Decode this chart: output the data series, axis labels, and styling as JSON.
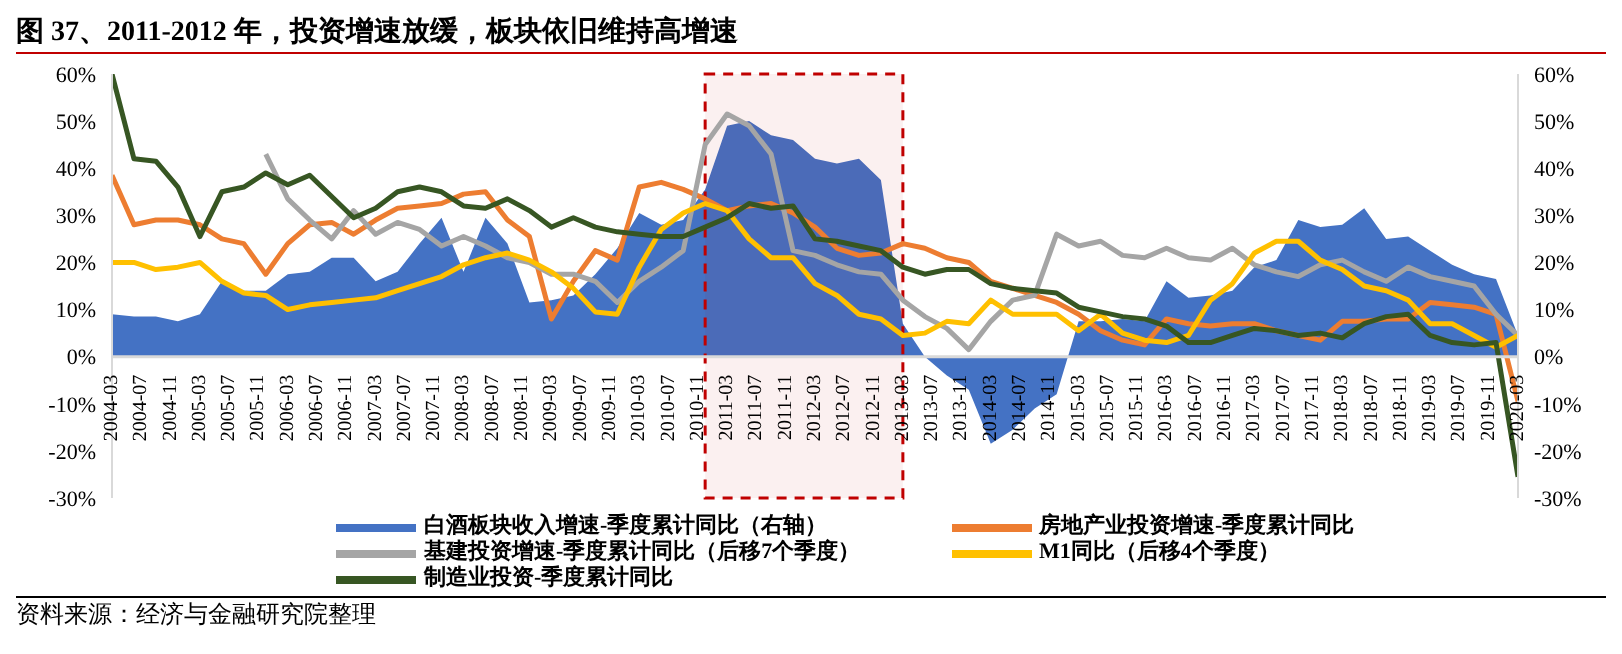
{
  "chart_data": {
    "type": "line",
    "title": "图 37、2011-2012 年，投资增速放缓，板块依旧维持高增速",
    "x": [
      "2004-03",
      "2004-06",
      "2004-09",
      "2004-12",
      "2005-03",
      "2005-06",
      "2005-09",
      "2005-12",
      "2006-03",
      "2006-06",
      "2006-09",
      "2006-12",
      "2007-03",
      "2007-06",
      "2007-09",
      "2007-12",
      "2008-03",
      "2008-06",
      "2008-09",
      "2008-12",
      "2009-03",
      "2009-06",
      "2009-09",
      "2009-12",
      "2010-03",
      "2010-06",
      "2010-09",
      "2010-12",
      "2011-03",
      "2011-06",
      "2011-09",
      "2011-12",
      "2012-03",
      "2012-06",
      "2012-09",
      "2012-12",
      "2013-03",
      "2013-06",
      "2013-09",
      "2013-12",
      "2014-03",
      "2014-06",
      "2014-09",
      "2014-12",
      "2015-03",
      "2015-06",
      "2015-09",
      "2015-12",
      "2016-03",
      "2016-06",
      "2016-09",
      "2016-12",
      "2017-03",
      "2017-06",
      "2017-09",
      "2017-12",
      "2018-03",
      "2018-06",
      "2018-09",
      "2018-12",
      "2019-03",
      "2019-06",
      "2019-09",
      "2019-12",
      "2020-03"
    ],
    "series": [
      {
        "name": "白酒板块收入增速-季度累计同比（右轴）",
        "type": "area",
        "axis": "y2",
        "color": "#4472c4",
        "values": [
          9,
          8.5,
          8.5,
          7.5,
          9,
          16,
          14,
          14,
          17.5,
          18,
          21,
          21,
          16,
          18,
          24,
          29.5,
          18,
          29.5,
          24,
          11.5,
          12,
          13,
          17.5,
          23,
          30.5,
          28,
          29,
          35.5,
          49,
          50,
          47,
          46,
          42,
          41,
          42,
          37.5,
          7,
          0,
          -4,
          -7,
          -18.5,
          -15.5,
          -11,
          -8,
          7.5,
          7.5,
          8,
          7.5,
          16,
          12.5,
          13,
          14,
          19,
          20.5,
          29,
          27.5,
          28,
          31.5,
          25,
          25.5,
          22.5,
          19.5,
          17.5,
          16.5,
          4.5
        ]
      },
      {
        "name": "房地产业投资增速-季度累计同比",
        "color": "#ed7d31",
        "values": [
          38.5,
          28,
          29,
          29,
          28,
          25,
          24,
          17.5,
          24,
          28,
          28.5,
          26,
          29,
          31.5,
          32,
          32.5,
          34.5,
          35,
          29,
          25.5,
          8,
          16,
          22.5,
          20.5,
          36,
          37,
          35.5,
          33.5,
          31,
          32,
          32.5,
          30.5,
          27.5,
          23,
          21.5,
          22,
          24,
          23,
          21,
          20,
          16,
          14.5,
          13,
          11.5,
          9,
          5.5,
          3.5,
          2.5,
          8,
          7,
          6.5,
          7,
          7,
          5.5,
          4.5,
          3.5,
          7.5,
          7.5,
          8,
          8,
          11.5,
          11,
          10.5,
          9,
          -9.5
        ]
      },
      {
        "name": "基建投资增速-季度累计同比（后移7个季度）",
        "color": "#a5a5a5",
        "values": [
          null,
          null,
          null,
          null,
          null,
          null,
          null,
          43,
          33.5,
          29,
          25,
          31,
          26,
          28.5,
          27,
          23.5,
          25.5,
          23.5,
          21,
          20,
          17.5,
          17.5,
          16,
          11.5,
          16,
          19,
          22.5,
          45,
          51.5,
          49,
          43,
          22.5,
          21.5,
          19.5,
          18,
          17.5,
          12,
          8.5,
          6,
          1.5,
          7.5,
          12,
          13,
          26,
          23.5,
          24.5,
          21.5,
          21,
          23,
          21,
          20.5,
          23,
          19.5,
          18,
          17,
          19.5,
          20.5,
          18,
          16,
          19,
          17,
          16,
          15,
          9,
          4.5
        ]
      },
      {
        "name": "M1同比（后移4个季度）",
        "color": "#ffc000",
        "values": [
          20,
          20,
          18.5,
          19,
          20,
          16,
          13.5,
          13,
          10,
          11,
          11.5,
          12,
          12.5,
          14,
          15.5,
          17,
          19.5,
          21,
          22,
          20.5,
          18,
          14.5,
          9.5,
          9,
          19,
          27,
          30.5,
          32.5,
          31,
          25,
          21,
          21,
          15.5,
          13,
          9,
          8,
          4.5,
          5,
          7.5,
          7,
          12,
          9,
          9,
          9,
          5.5,
          9,
          5,
          3.5,
          3,
          4.5,
          12,
          15.5,
          22,
          24.5,
          24.5,
          20.5,
          18.5,
          15,
          14,
          12,
          7,
          7,
          4.5,
          2,
          4.5
        ]
      },
      {
        "name": "制造业投资-季度累计同比",
        "color": "#375623",
        "values": [
          60,
          42,
          41.5,
          36,
          25.5,
          35,
          36,
          39,
          36.5,
          38.5,
          34,
          29.5,
          31.5,
          35,
          36,
          35,
          32,
          31.5,
          33.5,
          31,
          27.5,
          29.5,
          27.5,
          26.5,
          26,
          25.5,
          25.5,
          27.5,
          29.5,
          32.5,
          31.5,
          32,
          25,
          24.5,
          23.5,
          22.5,
          19,
          17.5,
          18.5,
          18.5,
          15.5,
          14.5,
          14,
          13.5,
          10.5,
          9.5,
          8.5,
          8,
          6.5,
          3,
          3,
          4.5,
          6,
          5.5,
          4.5,
          5,
          4,
          7,
          8.5,
          9,
          4.5,
          3,
          2.5,
          3,
          -25.5
        ]
      }
    ],
    "xlim": [
      "2004-03",
      "2020-03"
    ],
    "xticks": [
      "2004-03",
      "2004-07",
      "2004-11",
      "2005-03",
      "2005-07",
      "2005-11",
      "2006-03",
      "2006-07",
      "2006-11",
      "2007-03",
      "2007-07",
      "2007-11",
      "2008-03",
      "2008-07",
      "2008-11",
      "2009-03",
      "2009-07",
      "2009-11",
      "2010-03",
      "2010-07",
      "2010-11",
      "2011-03",
      "2011-07",
      "2011-11",
      "2012-03",
      "2012-07",
      "2012-11",
      "2013-03",
      "2013-07",
      "2013-11",
      "2014-03",
      "2014-07",
      "2014-11",
      "2015-03",
      "2015-07",
      "2015-11",
      "2016-03",
      "2016-07",
      "2016-11",
      "2017-03",
      "2017-07",
      "2017-11",
      "2018-03",
      "2018-07",
      "2018-11",
      "2019-03",
      "2019-07",
      "2019-11",
      "2020-03"
    ],
    "ylim": [
      -30,
      60
    ],
    "yticks": [
      {
        "value": -30,
        "label": "-30%"
      },
      {
        "value": -20,
        "label": "-20%"
      },
      {
        "value": -10,
        "label": "-10%"
      },
      {
        "value": 0,
        "label": "0%"
      },
      {
        "value": 10,
        "label": "10%"
      },
      {
        "value": 20,
        "label": "20%"
      },
      {
        "value": 30,
        "label": "30%"
      },
      {
        "value": 40,
        "label": "40%"
      },
      {
        "value": 50,
        "label": "50%"
      },
      {
        "value": 60,
        "label": "60%"
      }
    ],
    "y2lim": [
      -30,
      60
    ],
    "y2ticks": [
      {
        "value": -30,
        "label": "-30%"
      },
      {
        "value": -20,
        "label": "-20%"
      },
      {
        "value": -10,
        "label": "-10%"
      },
      {
        "value": 0,
        "label": "0%"
      },
      {
        "value": 10,
        "label": "10%"
      },
      {
        "value": 20,
        "label": "20%"
      },
      {
        "value": 30,
        "label": "30%"
      },
      {
        "value": 40,
        "label": "40%"
      },
      {
        "value": 50,
        "label": "50%"
      },
      {
        "value": 60,
        "label": "60%"
      }
    ],
    "bands": [
      {
        "axis": "x",
        "from": "2010-12",
        "to": "2013-03",
        "color": "#c00000"
      }
    ],
    "grid": false,
    "legend": "bottom",
    "annotations": [
      "资料来源：经济与金融研究院整理"
    ]
  }
}
